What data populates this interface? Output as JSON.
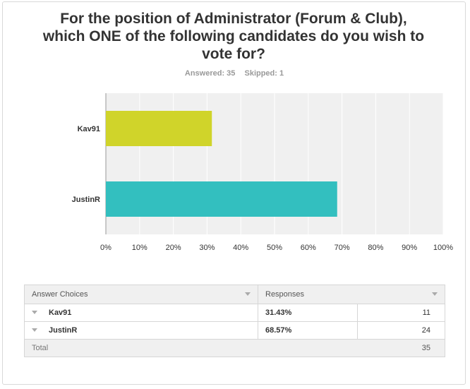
{
  "title": "For the position of Administrator (Forum & Club), which ONE of the following candidates do you wish to vote for?",
  "answered": "Answered: 35",
  "skipped": "Skipped: 1",
  "colors": {
    "bar1": "#d0d42a",
    "bar2": "#33bfbf",
    "plot_bg": "#f0f0f0",
    "grid": "#ffffff"
  },
  "chart_data": {
    "type": "bar",
    "orientation": "horizontal",
    "categories": [
      "Kav91",
      "JustinR"
    ],
    "values": [
      31.43,
      68.57
    ],
    "xlim": [
      0,
      100
    ],
    "xticks": [
      "0%",
      "10%",
      "20%",
      "30%",
      "40%",
      "50%",
      "60%",
      "70%",
      "80%",
      "90%",
      "100%"
    ],
    "grid": true,
    "title": "For the position of Administrator (Forum & Club), which ONE of the following candidates do you wish to vote for?"
  },
  "table": {
    "headers": [
      "Answer Choices",
      "Responses"
    ],
    "rows": [
      {
        "choice": "Kav91",
        "percent": "31.43%",
        "count": "11"
      },
      {
        "choice": "JustinR",
        "percent": "68.57%",
        "count": "24"
      }
    ],
    "total_label": "Total",
    "total_count": "35"
  }
}
